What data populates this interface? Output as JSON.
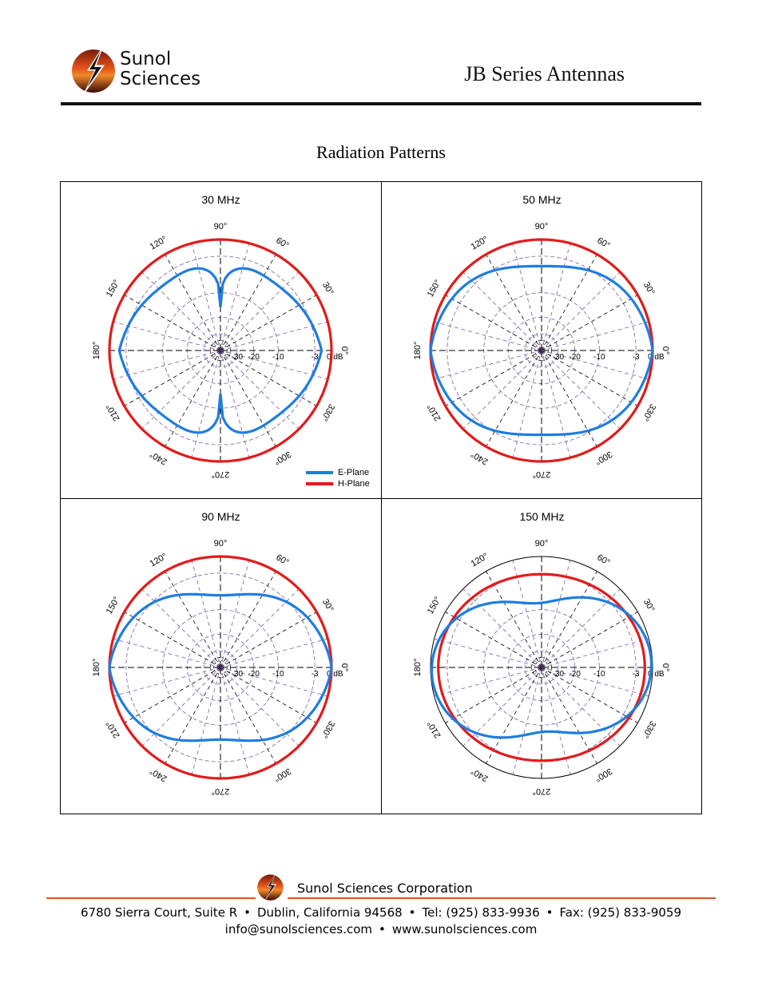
{
  "header": {
    "logo_line1": "Sunol",
    "logo_line2": "Sciences",
    "doc_title": "JB Series Antennas"
  },
  "section_title": "Radiation Patterns",
  "chart_data": [
    {
      "type": "polar",
      "title": "30 MHz",
      "angle_unit": "degrees",
      "radial_unit": "dB",
      "radial_ticks": [
        "-30",
        "-20",
        "-10",
        "-3",
        "0 dB"
      ],
      "angle_labels": [
        "0°",
        "30°",
        "60°",
        "90°",
        "120°",
        "150°",
        "180°",
        "210°",
        "240°",
        "270°",
        "300°",
        "330°"
      ],
      "series": [
        {
          "name": "E-Plane",
          "description": "figure-eight with nulls near 90° and 270°",
          "color": "#1e7de0",
          "min_db": -8,
          "max_db": 0
        },
        {
          "name": "H-Plane",
          "description": "omnidirectional",
          "color": "#e31a1a",
          "min_db": 0,
          "max_db": 0
        }
      ]
    },
    {
      "type": "polar",
      "title": "50 MHz",
      "angle_unit": "degrees",
      "radial_unit": "dB",
      "radial_ticks": [
        "-30",
        "-20",
        "-10",
        "-3",
        "0 dB"
      ],
      "angle_labels": [
        "0°",
        "30°",
        "60°",
        "90°",
        "120°",
        "150°",
        "180°",
        "210°",
        "240°",
        "270°",
        "300°",
        "330°"
      ],
      "series": [
        {
          "name": "E-Plane",
          "color": "#1e7de0",
          "min_db": -3,
          "max_db": 0
        },
        {
          "name": "H-Plane",
          "color": "#e31a1a",
          "min_db": 0,
          "max_db": 0
        }
      ]
    },
    {
      "type": "polar",
      "title": "90 MHz",
      "angle_unit": "degrees",
      "radial_unit": "dB",
      "radial_ticks": [
        "-30",
        "-20",
        "-10",
        "-3",
        "0 dB"
      ],
      "angle_labels": [
        "0°",
        "30°",
        "60°",
        "90°",
        "120°",
        "150°",
        "180°",
        "210°",
        "240°",
        "270°",
        "300°",
        "330°"
      ],
      "series": [
        {
          "name": "E-Plane",
          "color": "#1e7de0",
          "min_db": -5,
          "max_db": 0
        },
        {
          "name": "H-Plane",
          "color": "#e31a1a",
          "min_db": 0,
          "max_db": 0
        }
      ]
    },
    {
      "type": "polar",
      "title": "150 MHz",
      "angle_unit": "degrees",
      "radial_unit": "dB",
      "radial_ticks": [
        "-30",
        "-20",
        "-10",
        "-3",
        "0 dB"
      ],
      "angle_labels": [
        "0°",
        "30°",
        "60°",
        "90°",
        "120°",
        "150°",
        "180°",
        "210°",
        "240°",
        "270°",
        "300°",
        "330°"
      ],
      "series": [
        {
          "name": "E-Plane",
          "color": "#1e7de0",
          "min_db": -5,
          "max_db": 0
        },
        {
          "name": "H-Plane",
          "color": "#e31a1a",
          "min_db": -3,
          "max_db": 0
        }
      ]
    }
  ],
  "legend": {
    "e_plane": "E-Plane",
    "h_plane": "H-Plane"
  },
  "footer": {
    "company": "Sunol Sciences Corporation",
    "address": "6780 Sierra Court, Suite R",
    "city": "Dublin, California 94568",
    "tel": "Tel: (925) 833-9936",
    "fax": "Fax: (925) 833-9059",
    "email": "info@sunolsciences.com",
    "web": "www.sunolsciences.com"
  },
  "colors": {
    "e_plane": "#1e7de0",
    "h_plane": "#e31a1a",
    "accent": "#d9551e",
    "grid": "#7a5aa0"
  }
}
